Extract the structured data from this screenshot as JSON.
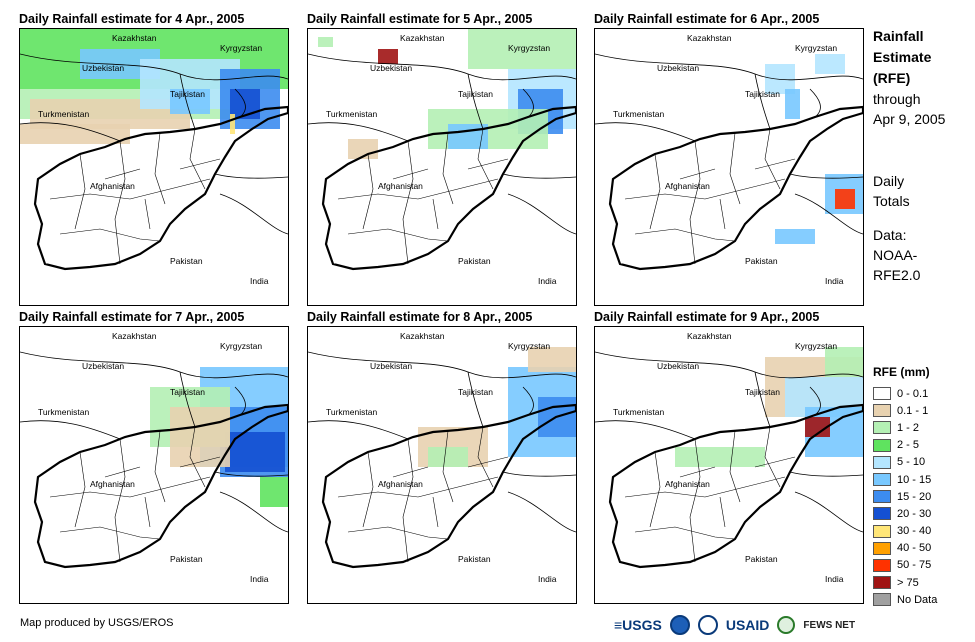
{
  "panels": [
    {
      "title": "Daily Rainfall estimate for 4 Apr., 2005"
    },
    {
      "title": "Daily Rainfall estimate for 5 Apr., 2005"
    },
    {
      "title": "Daily Rainfall estimate for 6 Apr., 2005"
    },
    {
      "title": "Daily Rainfall estimate for 7 Apr., 2005"
    },
    {
      "title": "Daily Rainfall estimate for 8 Apr., 2005"
    },
    {
      "title": "Daily Rainfall estimate for 9 Apr., 2005"
    }
  ],
  "countries": {
    "kazakhstan": "Kazakhstan",
    "kyrgyzstan": "Kyrgyzstan",
    "uzbekistan": "Uzbekistan",
    "tajikistan": "Tajikistan",
    "turkmenistan": "Turkmenistan",
    "afghanistan": "Afghanistan",
    "pakistan": "Pakistan",
    "india": "India"
  },
  "side": {
    "title_lines": [
      "Rainfall",
      "Estimate",
      "(RFE)"
    ],
    "through_lines": [
      "through",
      "Apr 9, 2005"
    ],
    "totals_lines": [
      "Daily",
      "Totals"
    ],
    "data_lines": [
      "Data:",
      "NOAA-",
      "RFE2.0"
    ]
  },
  "legend": {
    "title": "RFE (mm)",
    "items": [
      {
        "label": "0 - 0.1",
        "color": "#ffffff"
      },
      {
        "label": "0.1 - 1",
        "color": "#e8d2b0"
      },
      {
        "label": "1 - 2",
        "color": "#b4f0b4"
      },
      {
        "label": "2 - 5",
        "color": "#5fe35f"
      },
      {
        "label": "5 - 10",
        "color": "#b4e6ff"
      },
      {
        "label": "10 - 15",
        "color": "#78c8ff"
      },
      {
        "label": "15 - 20",
        "color": "#3c8cf0"
      },
      {
        "label": "20 - 30",
        "color": "#1450d2"
      },
      {
        "label": "30 - 40",
        "color": "#ffe678"
      },
      {
        "label": "40 - 50",
        "color": "#ffa000"
      },
      {
        "label": "50 - 75",
        "color": "#ff3200"
      },
      {
        "label": "> 75",
        "color": "#a01414"
      },
      {
        "label": "No Data",
        "color": "#a0a0a0"
      }
    ]
  },
  "credit": "Map produced by USGS/EROS",
  "logos": {
    "usgs": "≡USGS",
    "usaid": "USAID",
    "fews": "FEWS NET"
  }
}
